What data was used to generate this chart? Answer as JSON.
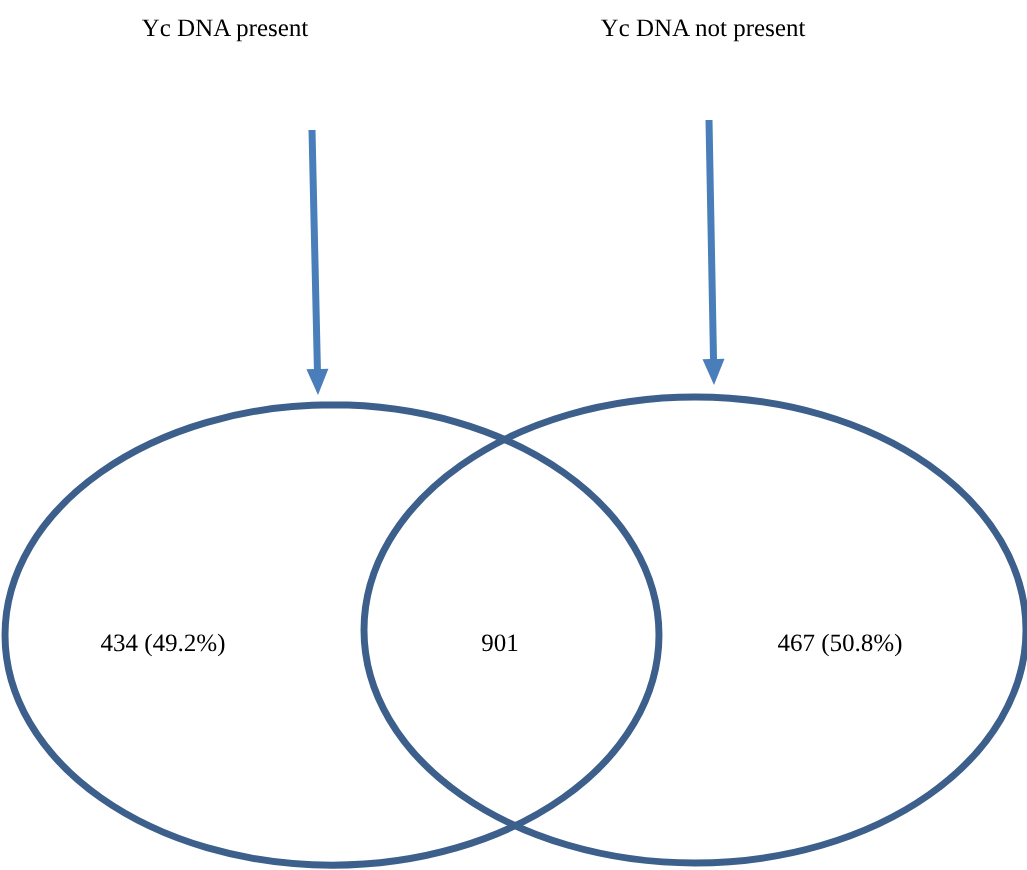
{
  "chart_data": {
    "type": "other",
    "categories": [
      "Yc DNA present",
      null,
      "Yc DNA not present"
    ],
    "values": [
      434,
      901,
      467
    ],
    "value_labels": [
      "434 (49.2%)",
      "901",
      "467 (50.8%)"
    ],
    "color": "#3c5f8c"
  }
}
